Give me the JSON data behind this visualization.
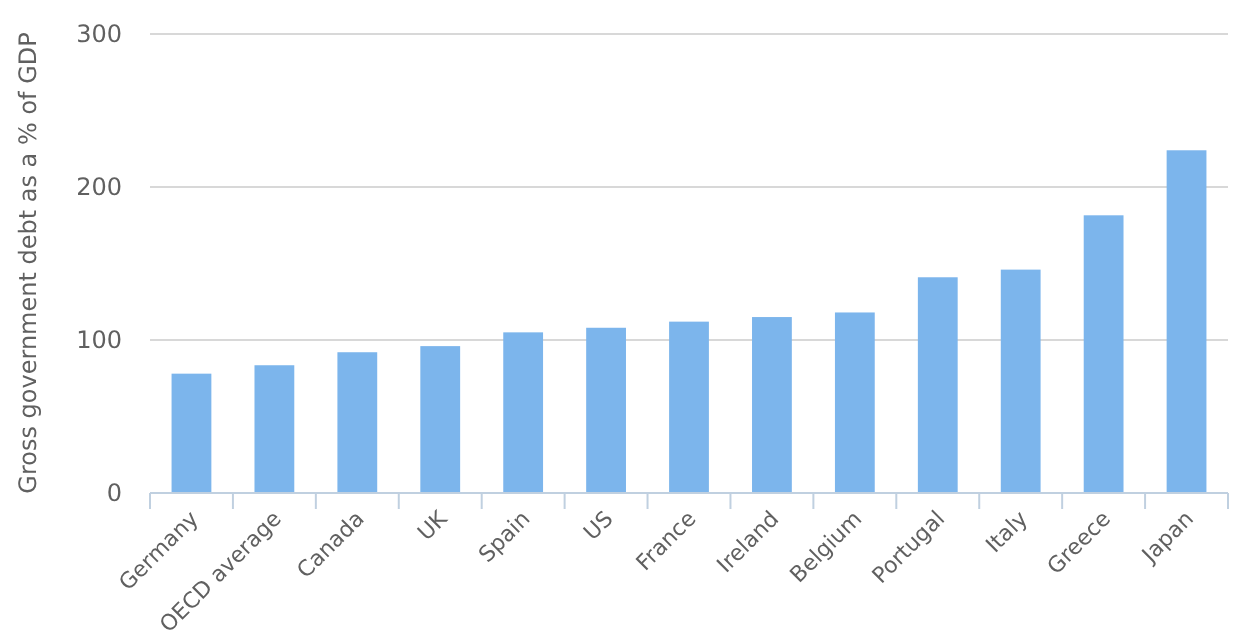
{
  "chart_data": {
    "type": "bar",
    "ylabel": "Gross government debt as a % of GDP",
    "categories": [
      "Germany",
      "OECD average",
      "Canada",
      "UK",
      "Spain",
      "US",
      "France",
      "Ireland",
      "Belgium",
      "Portugal",
      "Italy",
      "Greece",
      "Japan"
    ],
    "values": [
      78,
      83.5,
      92,
      96,
      105,
      108,
      112,
      115,
      118,
      141,
      146,
      181.5,
      224
    ],
    "color": "#7cb5ec",
    "ylim": [
      0,
      300
    ],
    "yticks": [
      0,
      100,
      200,
      300
    ],
    "grid": "y"
  }
}
